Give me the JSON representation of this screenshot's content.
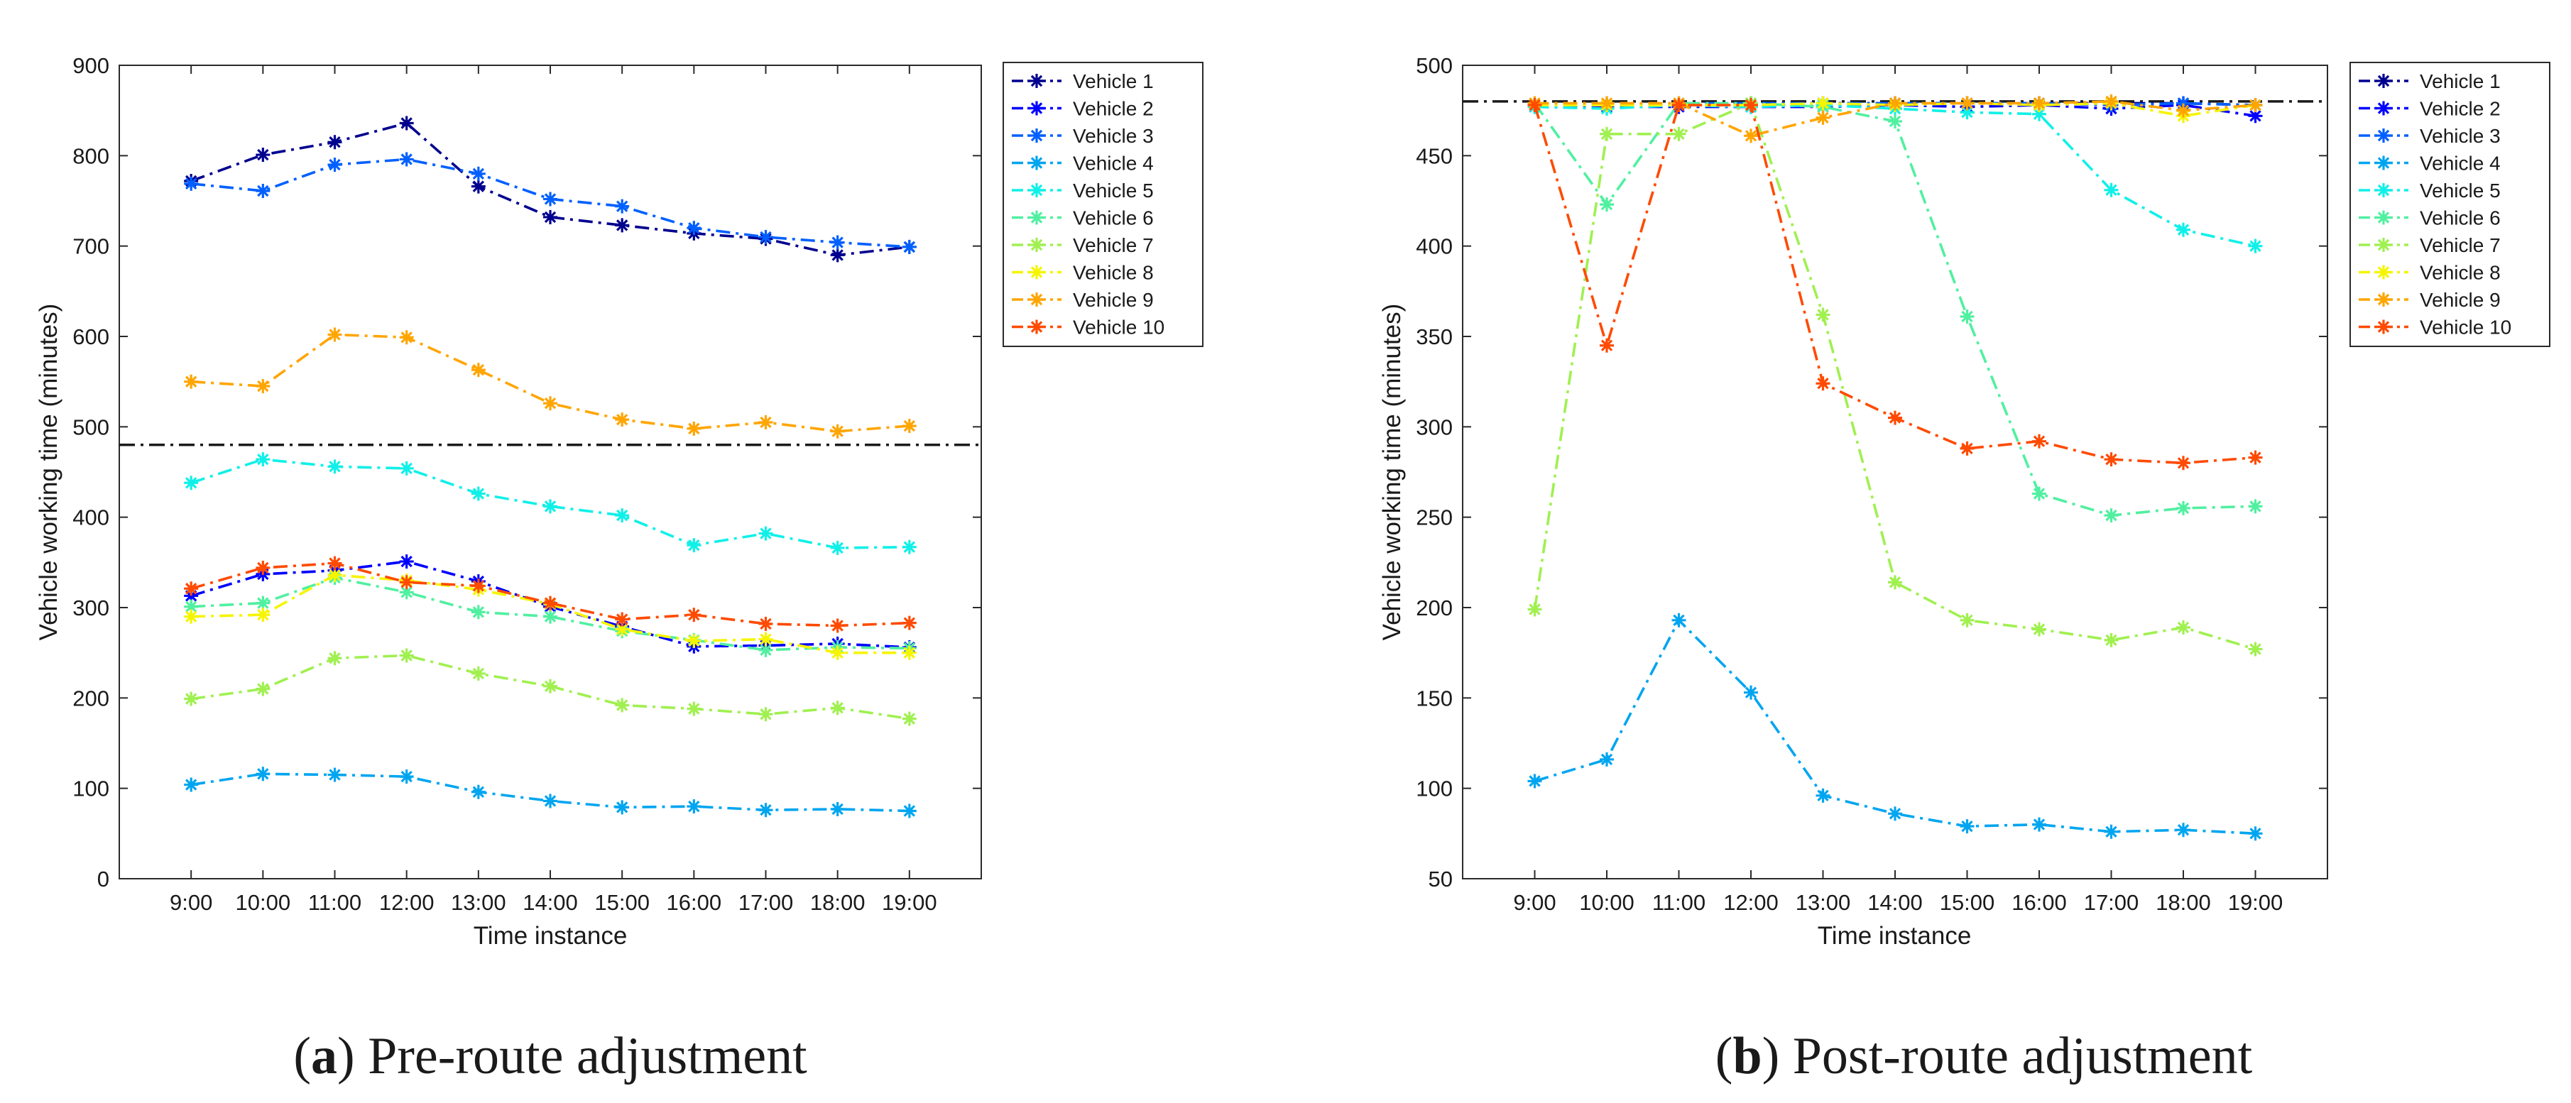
{
  "chart_data": [
    {
      "type": "line",
      "caption_letter": "a",
      "caption_text": " Pre-route adjustment",
      "xlabel": "Time instance",
      "ylabel": "Vehicle working time (minutes)",
      "categories": [
        "9:00",
        "10:00",
        "11:00",
        "12:00",
        "13:00",
        "14:00",
        "15:00",
        "16:00",
        "17:00",
        "18:00",
        "19:00"
      ],
      "ylim": [
        0,
        900
      ],
      "yticks": [
        0,
        100,
        200,
        300,
        400,
        500,
        600,
        700,
        800,
        900
      ],
      "reference_line": 480,
      "series": [
        {
          "name": "Vehicle 1",
          "color": "#00008f",
          "values": [
            772,
            801,
            815,
            836,
            766,
            732,
            723,
            714,
            708,
            690,
            699
          ]
        },
        {
          "name": "Vehicle 2",
          "color": "#0000ff",
          "values": [
            313,
            337,
            341,
            351,
            329,
            301,
            279,
            257,
            258,
            260,
            256
          ]
        },
        {
          "name": "Vehicle 3",
          "color": "#0060ff",
          "values": [
            769,
            761,
            790,
            796,
            780,
            752,
            744,
            720,
            710,
            704,
            699
          ]
        },
        {
          "name": "Vehicle 4",
          "color": "#00a5f0",
          "values": [
            104,
            116,
            115,
            113,
            96,
            86,
            79,
            80,
            76,
            77,
            75
          ]
        },
        {
          "name": "Vehicle 5",
          "color": "#10f0e8",
          "values": [
            438,
            464,
            456,
            454,
            426,
            412,
            402,
            369,
            382,
            366,
            367
          ]
        },
        {
          "name": "Vehicle 6",
          "color": "#50f0a0",
          "values": [
            301,
            305,
            333,
            317,
            295,
            290,
            274,
            264,
            253,
            256,
            255
          ]
        },
        {
          "name": "Vehicle 7",
          "color": "#a0f050",
          "values": [
            199,
            210,
            244,
            247,
            227,
            213,
            192,
            188,
            182,
            189,
            177
          ]
        },
        {
          "name": "Vehicle 8",
          "color": "#f5f500",
          "values": [
            290,
            292,
            336,
            330,
            320,
            304,
            276,
            263,
            265,
            250,
            250
          ]
        },
        {
          "name": "Vehicle 9",
          "color": "#ffa500",
          "values": [
            550,
            545,
            602,
            599,
            563,
            526,
            508,
            498,
            505,
            495,
            501
          ]
        },
        {
          "name": "Vehicle 10",
          "color": "#ff4a00",
          "values": [
            321,
            344,
            349,
            328,
            324,
            305,
            287,
            292,
            282,
            280,
            283
          ]
        }
      ]
    },
    {
      "type": "line",
      "caption_letter": "b",
      "caption_text": " Post-route adjustment",
      "xlabel": "Time instance",
      "ylabel": "Vehicle working time (minutes)",
      "categories": [
        "9:00",
        "10:00",
        "11:00",
        "12:00",
        "13:00",
        "14:00",
        "15:00",
        "16:00",
        "17:00",
        "18:00",
        "19:00"
      ],
      "ylim": [
        50,
        500
      ],
      "yticks": [
        50,
        100,
        150,
        200,
        250,
        300,
        350,
        400,
        450,
        500
      ],
      "reference_line": 480,
      "series": [
        {
          "name": "Vehicle 1",
          "color": "#00008f",
          "values": [
            478,
            478,
            478,
            479,
            479,
            479,
            479,
            479,
            479,
            479,
            478
          ]
        },
        {
          "name": "Vehicle 2",
          "color": "#0000ff",
          "values": [
            477,
            477,
            477,
            477,
            477,
            478,
            477,
            478,
            476,
            478,
            472
          ]
        },
        {
          "name": "Vehicle 3",
          "color": "#0060ff",
          "values": [
            478,
            478,
            479,
            479,
            479,
            479,
            479,
            479,
            478,
            479,
            478
          ]
        },
        {
          "name": "Vehicle 4",
          "color": "#00a5f0",
          "values": [
            104,
            116,
            193,
            153,
            96,
            86,
            79,
            80,
            76,
            77,
            75
          ]
        },
        {
          "name": "Vehicle 5",
          "color": "#10f0e8",
          "values": [
            477,
            476,
            478,
            477,
            478,
            476,
            474,
            473,
            431,
            409,
            400
          ]
        },
        {
          "name": "Vehicle 6",
          "color": "#50f0a0",
          "values": [
            479,
            423,
            479,
            479,
            477,
            469,
            361,
            263,
            251,
            255,
            256
          ]
        },
        {
          "name": "Vehicle 7",
          "color": "#a0f050",
          "values": [
            199,
            462,
            462,
            479,
            362,
            214,
            193,
            188,
            182,
            189,
            177
          ]
        },
        {
          "name": "Vehicle 8",
          "color": "#f5f500",
          "values": [
            478,
            478,
            478,
            478,
            479,
            478,
            479,
            478,
            479,
            472,
            478
          ]
        },
        {
          "name": "Vehicle 9",
          "color": "#ffa500",
          "values": [
            479,
            479,
            479,
            461,
            471,
            479,
            479,
            479,
            480,
            475,
            478
          ]
        },
        {
          "name": "Vehicle 10",
          "color": "#ff4a00",
          "values": [
            478,
            345,
            478,
            478,
            324,
            305,
            288,
            292,
            282,
            280,
            283
          ]
        }
      ]
    }
  ]
}
